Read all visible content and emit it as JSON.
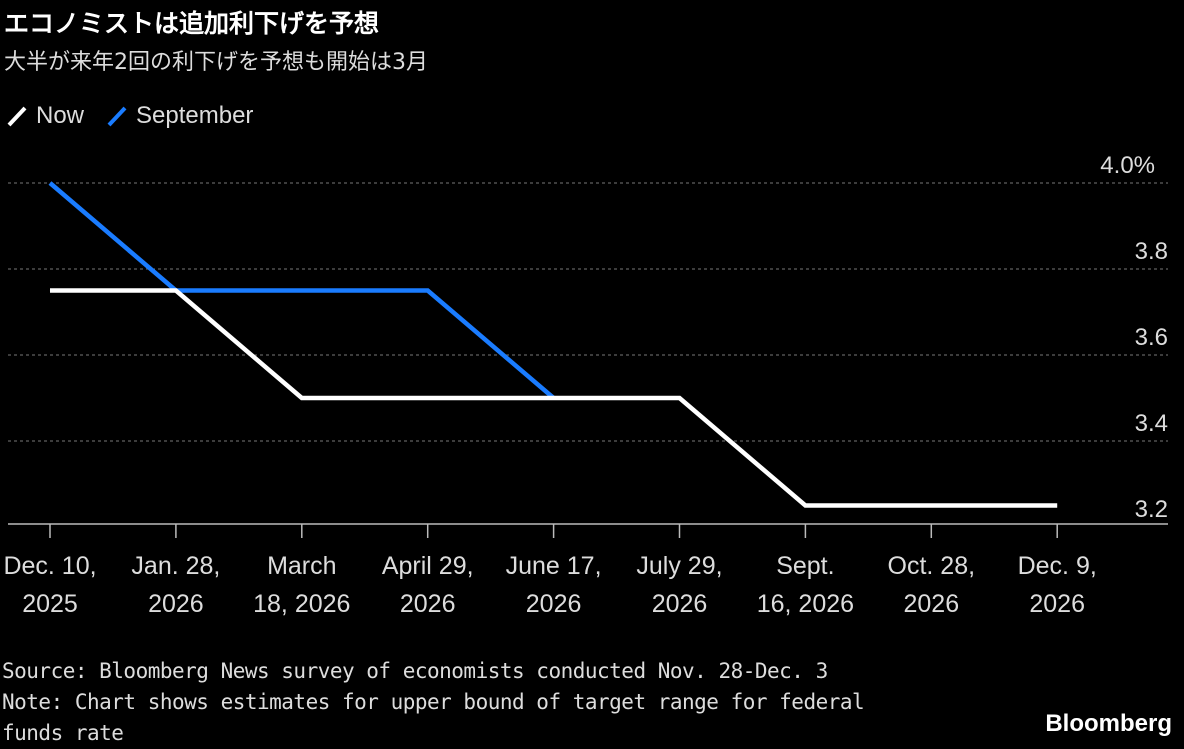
{
  "title": "エコノミストは追加利下げを予想",
  "subtitle": "大半が来年2回の利下げを予想も開始は3月",
  "footer": {
    "source": "Source: Bloomberg News survey of economists conducted Nov. 28-Dec. 3",
    "note_line1": "Note: Chart shows estimates for upper bound of target range for federal",
    "note_line2": "funds rate",
    "logo": "Bloomberg"
  },
  "chart_data": {
    "type": "line",
    "legend_placement": "top-left",
    "grid": true,
    "x_categories": [
      [
        "Dec. 10,",
        "2025"
      ],
      [
        "Jan. 28,",
        "2026"
      ],
      [
        "March",
        "18, 2026"
      ],
      [
        "April 29,",
        "2026"
      ],
      [
        "June 17,",
        "2026"
      ],
      [
        "July 29,",
        "2026"
      ],
      [
        "Sept.",
        "16, 2026"
      ],
      [
        "Oct. 28,",
        "2026"
      ],
      [
        "Dec. 9,",
        "2026"
      ]
    ],
    "ylim": [
      3.2,
      4.0
    ],
    "y_ticks": [
      {
        "value": 4.0,
        "label": "4.0%"
      },
      {
        "value": 3.8,
        "label": "3.8"
      },
      {
        "value": 3.6,
        "label": "3.6"
      },
      {
        "value": 3.4,
        "label": "3.4"
      },
      {
        "value": 3.2,
        "label": "3.2"
      }
    ],
    "series": [
      {
        "name": "Now",
        "color": "#ffffff",
        "values": [
          3.75,
          3.75,
          3.5,
          3.5,
          3.5,
          3.5,
          3.25,
          3.25,
          3.25
        ]
      },
      {
        "name": "September",
        "color": "#1a7cff",
        "values": [
          4.0,
          3.75,
          3.75,
          3.75,
          3.5,
          null,
          null,
          null,
          null
        ]
      }
    ]
  }
}
